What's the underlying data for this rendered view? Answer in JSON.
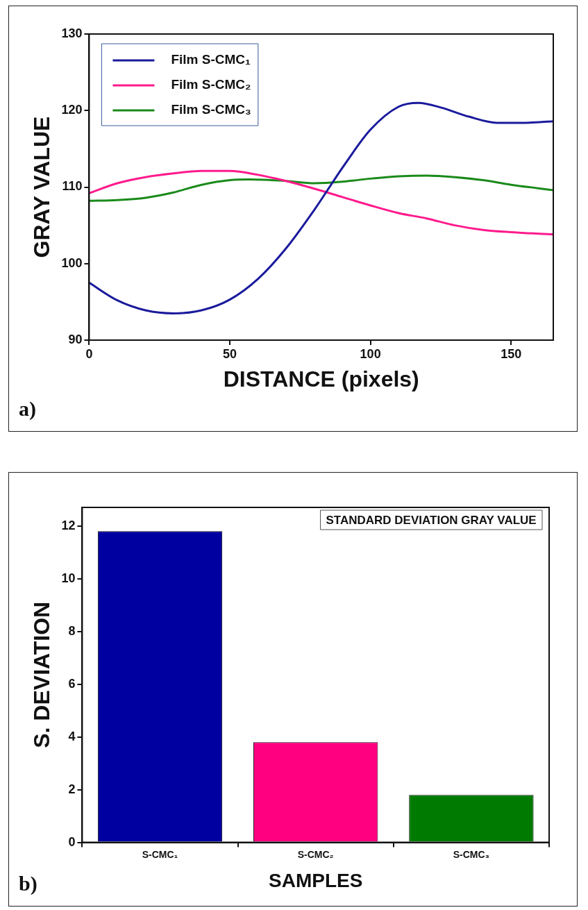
{
  "chart_data": [
    {
      "type": "line",
      "xlabel": "DISTANCE (pixels)",
      "ylabel": "GRAY VALUE",
      "xlim": [
        0,
        165
      ],
      "xticks": [
        0,
        50,
        100,
        150
      ],
      "ylim": [
        90,
        130
      ],
      "yticks": [
        90,
        100,
        110,
        120,
        130
      ],
      "grid": false,
      "legend": "top left",
      "annotations": [
        "a)"
      ],
      "series": [
        {
          "name": "Film S-CMC₁",
          "color": "#1a1a9c",
          "x": [
            0,
            10,
            20,
            30,
            40,
            50,
            60,
            70,
            80,
            90,
            100,
            110,
            117,
            125,
            135,
            145,
            155,
            165
          ],
          "values": [
            97.5,
            95.2,
            93.9,
            93.5,
            93.9,
            95.3,
            98,
            102,
            107,
            112.5,
            117.5,
            120.5,
            121,
            120.4,
            119.2,
            118.4,
            118.4,
            118.6
          ]
        },
        {
          "name": "Film S-CMC₂",
          "color": "#ff1a8c",
          "x": [
            0,
            10,
            20,
            30,
            40,
            50,
            60,
            70,
            80,
            90,
            100,
            110,
            120,
            130,
            140,
            150,
            165
          ],
          "values": [
            109.2,
            110.5,
            111.3,
            111.8,
            112.1,
            112.1,
            111.6,
            110.8,
            109.8,
            108.7,
            107.6,
            106.6,
            105.9,
            105,
            104.4,
            104.1,
            103.8
          ]
        },
        {
          "name": "Film S-CMC₃",
          "color": "#1a8a1a",
          "x": [
            0,
            10,
            20,
            30,
            40,
            50,
            57,
            70,
            80,
            90,
            100,
            110,
            120,
            130,
            140,
            150,
            165
          ],
          "values": [
            108.2,
            108.3,
            108.6,
            109.3,
            110.3,
            110.9,
            111,
            110.8,
            110.5,
            110.7,
            111.1,
            111.4,
            111.5,
            111.3,
            110.9,
            110.3,
            109.6
          ]
        }
      ]
    },
    {
      "type": "bar",
      "xlabel": "SAMPLES",
      "ylabel": "S. DEVIATION",
      "categories": [
        "S-CMC₁",
        "S-CMC₂",
        "S-CMC₃"
      ],
      "values": [
        11.8,
        3.8,
        1.8
      ],
      "colors": [
        "#0000a0",
        "#ff0080",
        "#007a00"
      ],
      "ylim": [
        0,
        12.7
      ],
      "yticks": [
        0,
        2,
        4,
        6,
        8,
        10,
        12
      ],
      "grid": false,
      "legend": false,
      "annotations": [
        "STANDARD DEVIATION GRAY VALUE",
        "b)"
      ]
    }
  ]
}
